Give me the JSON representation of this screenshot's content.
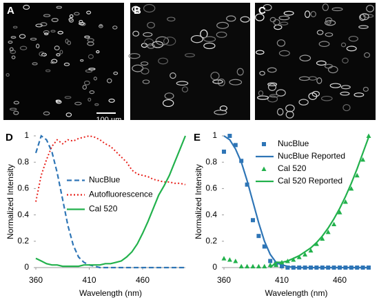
{
  "images": [
    {
      "label": "A"
    },
    {
      "label": "B"
    },
    {
      "label": "C"
    }
  ],
  "scale_bar_label": "100 µm",
  "chart_data": [
    {
      "type": "line",
      "panel_label": "D",
      "xlabel": "Wavelength (nm)",
      "ylabel": "Normalized Intensity",
      "x": [
        360,
        365,
        370,
        375,
        380,
        385,
        390,
        395,
        400,
        405,
        410,
        415,
        420,
        425,
        430,
        435,
        440,
        445,
        450,
        455,
        460,
        465,
        470,
        475,
        480,
        485,
        490,
        495,
        500
      ],
      "xlim": [
        360,
        500
      ],
      "xticks": [
        360,
        410,
        460
      ],
      "ylim": [
        0,
        1
      ],
      "yticks": [
        0,
        0.2,
        0.4,
        0.6,
        0.8,
        1
      ],
      "legend": "center right",
      "series": [
        {
          "name": "NucBlue",
          "color": "#2e75b6",
          "style": "dashed",
          "values": [
            0.87,
            1.0,
            0.97,
            0.88,
            0.72,
            0.52,
            0.32,
            0.17,
            0.08,
            0.04,
            0.02,
            0.01,
            0,
            0,
            0,
            0,
            0,
            0,
            0,
            0,
            0,
            0,
            0,
            0,
            0,
            0,
            0,
            0,
            0
          ]
        },
        {
          "name": "Autofluorescence",
          "color": "#e8201a",
          "style": "dotted",
          "values": [
            0.5,
            0.7,
            0.82,
            0.92,
            0.97,
            0.94,
            0.97,
            0.96,
            0.98,
            0.99,
            1.0,
            0.99,
            0.97,
            0.94,
            0.92,
            0.88,
            0.84,
            0.8,
            0.74,
            0.71,
            0.7,
            0.69,
            0.67,
            0.66,
            0.65,
            0.65,
            0.64,
            0.64,
            0.63
          ]
        },
        {
          "name": "Cal 520",
          "color": "#22b14c",
          "style": "solid",
          "values": [
            0.07,
            0.05,
            0.03,
            0.02,
            0.02,
            0.01,
            0.01,
            0.01,
            0.01,
            0.02,
            0.02,
            0.02,
            0.02,
            0.03,
            0.03,
            0.04,
            0.05,
            0.08,
            0.12,
            0.18,
            0.26,
            0.35,
            0.45,
            0.55,
            0.62,
            0.7,
            0.8,
            0.9,
            1.0
          ]
        }
      ]
    },
    {
      "type": "scatter",
      "panel_label": "E",
      "xlabel": "Wavelength (nm)",
      "ylabel": "Normalized Intensity",
      "x": [
        360,
        365,
        370,
        375,
        380,
        385,
        390,
        395,
        400,
        405,
        410,
        415,
        420,
        425,
        430,
        435,
        440,
        445,
        450,
        455,
        460,
        465,
        470,
        475,
        480,
        485
      ],
      "xlim": [
        360,
        485
      ],
      "xticks": [
        360,
        410,
        460
      ],
      "ylim": [
        0,
        1
      ],
      "yticks": [
        0,
        0.2,
        0.4,
        0.6,
        0.8,
        1
      ],
      "legend": "upper right",
      "series": [
        {
          "name": "NucBlue",
          "color": "#2e75b6",
          "type": "scatter",
          "marker": "square",
          "values": [
            0.88,
            1.0,
            0.93,
            0.81,
            0.63,
            0.36,
            0.24,
            0.16,
            0.05,
            0.03,
            0.01,
            0,
            0,
            0,
            0,
            0,
            0,
            0,
            0,
            0,
            0,
            0,
            0,
            0,
            0,
            0
          ]
        },
        {
          "name": "NucBlue Reported",
          "color": "#2e75b6",
          "type": "line",
          "values": [
            1.0,
            0.97,
            0.9,
            0.8,
            0.66,
            0.5,
            0.34,
            0.2,
            0.1,
            0.04,
            0.02,
            0.01,
            0,
            0,
            0,
            0,
            0,
            0,
            0,
            0,
            0,
            0,
            0,
            0,
            0,
            0
          ]
        },
        {
          "name": "Cal 520",
          "color": "#22b14c",
          "type": "scatter",
          "marker": "triangle",
          "values": [
            0.07,
            0.06,
            0.05,
            0.01,
            0.01,
            0.01,
            0.01,
            0.01,
            0.02,
            0.02,
            0.04,
            0.05,
            0.06,
            0.08,
            0.1,
            0.13,
            0.18,
            0.22,
            0.27,
            0.33,
            0.42,
            0.5,
            0.6,
            0.7,
            0.82,
            1.0
          ]
        },
        {
          "name": "Cal 520 Reported",
          "color": "#22b14c",
          "type": "line",
          "values": [
            null,
            null,
            null,
            null,
            null,
            null,
            null,
            null,
            0.0,
            0.04,
            0.04,
            0.05,
            0.07,
            0.09,
            0.12,
            0.15,
            0.19,
            0.24,
            0.3,
            0.37,
            0.45,
            0.54,
            0.64,
            0.75,
            0.87,
            0.99
          ]
        }
      ]
    }
  ]
}
